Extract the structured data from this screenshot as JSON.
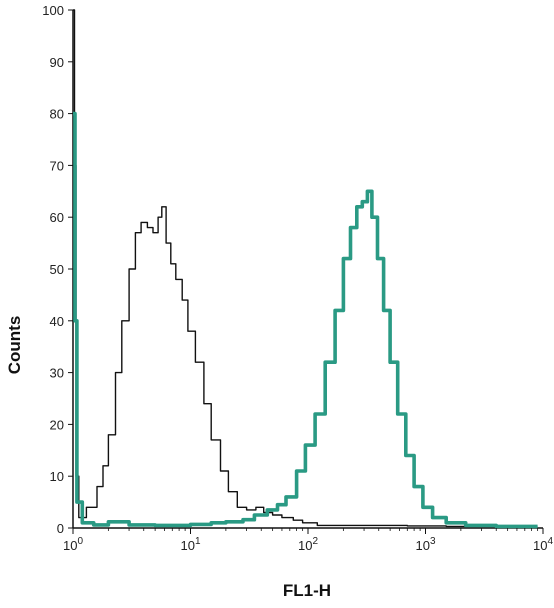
{
  "chart_data": {
    "type": "line",
    "title": "",
    "xlabel": "FL1-H",
    "ylabel": "Counts",
    "xscale": "log",
    "xlim": [
      1,
      10000
    ],
    "ylim": [
      0,
      100
    ],
    "grid": false,
    "x_ticks": [
      {
        "value": 1,
        "base": "10",
        "exp": "0"
      },
      {
        "value": 10,
        "base": "10",
        "exp": "1"
      },
      {
        "value": 100,
        "base": "10",
        "exp": "2"
      },
      {
        "value": 1000,
        "base": "10",
        "exp": "3"
      },
      {
        "value": 10000,
        "base": "10",
        "exp": "4"
      }
    ],
    "y_ticks": [
      "0",
      "10",
      "20",
      "30",
      "40",
      "50",
      "60",
      "70",
      "80",
      "90",
      "100"
    ],
    "series": [
      {
        "color": "#111111",
        "points": [
          [
            1.0,
            100
          ],
          [
            1.03,
            70
          ],
          [
            1.06,
            10
          ],
          [
            1.12,
            2
          ],
          [
            1.3,
            4
          ],
          [
            1.6,
            8
          ],
          [
            1.8,
            12
          ],
          [
            2.0,
            18
          ],
          [
            2.3,
            30
          ],
          [
            2.6,
            40
          ],
          [
            3.0,
            50
          ],
          [
            3.4,
            57
          ],
          [
            3.8,
            59
          ],
          [
            4.3,
            58
          ],
          [
            4.8,
            57
          ],
          [
            5.3,
            60
          ],
          [
            5.7,
            62
          ],
          [
            6.2,
            55
          ],
          [
            6.8,
            51
          ],
          [
            7.5,
            48
          ],
          [
            8.5,
            44
          ],
          [
            9.5,
            38
          ],
          [
            11,
            32
          ],
          [
            13,
            24
          ],
          [
            15,
            17
          ],
          [
            18,
            11
          ],
          [
            21,
            7
          ],
          [
            25,
            4
          ],
          [
            30,
            3.5
          ],
          [
            36,
            4
          ],
          [
            42,
            3
          ],
          [
            50,
            2.5
          ],
          [
            60,
            2
          ],
          [
            75,
            1.5
          ],
          [
            90,
            1
          ],
          [
            120,
            0.5
          ],
          [
            200,
            0.5
          ],
          [
            400,
            0.5
          ],
          [
            700,
            0.4
          ],
          [
            1500,
            0.3
          ],
          [
            4000,
            0.2
          ],
          [
            9000,
            0.2
          ]
        ]
      },
      {
        "color": "#2a9a84",
        "points": [
          [
            1.0,
            80
          ],
          [
            1.04,
            40
          ],
          [
            1.08,
            5
          ],
          [
            1.2,
            1
          ],
          [
            1.5,
            0.6
          ],
          [
            2.0,
            1.2
          ],
          [
            3.0,
            0.6
          ],
          [
            5.0,
            0.5
          ],
          [
            10,
            0.7
          ],
          [
            15,
            1
          ],
          [
            20,
            1.2
          ],
          [
            28,
            1.6
          ],
          [
            35,
            2.5
          ],
          [
            45,
            3.5
          ],
          [
            55,
            4.5
          ],
          [
            65,
            6
          ],
          [
            80,
            11
          ],
          [
            95,
            16
          ],
          [
            115,
            22
          ],
          [
            140,
            32
          ],
          [
            170,
            42
          ],
          [
            200,
            52
          ],
          [
            230,
            58
          ],
          [
            260,
            62
          ],
          [
            290,
            63
          ],
          [
            320,
            65
          ],
          [
            350,
            60
          ],
          [
            390,
            52
          ],
          [
            440,
            42
          ],
          [
            500,
            32
          ],
          [
            580,
            22
          ],
          [
            680,
            14
          ],
          [
            800,
            8
          ],
          [
            950,
            4
          ],
          [
            1150,
            2
          ],
          [
            1500,
            1
          ],
          [
            2200,
            0.5
          ],
          [
            4000,
            0.3
          ],
          [
            9000,
            0.3
          ]
        ]
      }
    ]
  }
}
